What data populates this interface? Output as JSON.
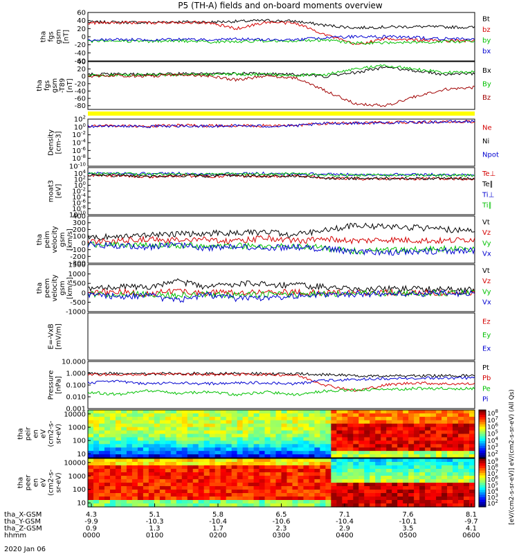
{
  "title": "P5 (TH-A) fields and on-board moments overview",
  "date_label": "2020 Jan 06",
  "chart_data": {
    "type": "line",
    "x_time_ticks": [
      "0000",
      "0100",
      "0200",
      "0300",
      "0400",
      "0500",
      "0600"
    ],
    "ephemeris": [
      {
        "label": "tha_X-GSM",
        "values": [
          "4.3",
          "5.1",
          "5.8",
          "6.5",
          "7.1",
          "7.6",
          "8.1"
        ]
      },
      {
        "label": "tha_Y-GSM",
        "values": [
          "-9.9",
          "-10.3",
          "-10.4",
          "-10.6",
          "-10.4",
          "-10.1",
          "-9.7"
        ]
      },
      {
        "label": "tha_Z-GSM",
        "values": [
          "0.9",
          "1.3",
          "1.7",
          "2.3",
          "2.9",
          "3.5",
          "4.1"
        ]
      },
      {
        "label": "hhmm",
        "values": [
          "0000",
          "0100",
          "0200",
          "0300",
          "0400",
          "0500",
          "0600"
        ]
      }
    ],
    "panels": [
      {
        "id": "fgs_gsm",
        "ylabel": [
          "tha",
          "fgs",
          "gsm",
          "[nT]"
        ],
        "ylim": [
          -60,
          60
        ],
        "yticks": [
          "60",
          "40",
          "20",
          "0",
          "-20",
          "-40",
          "-60"
        ],
        "legend": [
          {
            "name": "Bt",
            "color": "#000000"
          },
          {
            "name": "bz",
            "color": "#d40000"
          },
          {
            "name": "by",
            "color": "#00c000"
          },
          {
            "name": "bx",
            "color": "#0000d0"
          }
        ],
        "series": [
          {
            "name": "Bt",
            "color": "#000000",
            "values": [
              36,
              36,
              35,
              37,
              36,
              38,
              40,
              38,
              28,
              22,
              24,
              25,
              24,
              23
            ]
          },
          {
            "name": "bz",
            "color": "#d40000",
            "values": [
              34,
              35,
              34,
              36,
              35,
              20,
              36,
              33,
              5,
              -20,
              -5,
              -8,
              -10,
              -10
            ]
          },
          {
            "name": "by",
            "color": "#00c000",
            "values": [
              -12,
              -10,
              -12,
              -10,
              -13,
              -12,
              -10,
              -12,
              -8,
              -16,
              -15,
              -14,
              -12,
              -12
            ]
          },
          {
            "name": "bx",
            "color": "#0000d0",
            "values": [
              -8,
              -7,
              -8,
              -7,
              -8,
              -6,
              -7,
              -8,
              -2,
              0,
              0,
              -2,
              -5,
              -6
            ]
          }
        ]
      },
      {
        "id": "fgs_dsl",
        "ylabel": [
          "tha",
          "fgs",
          "gsm",
          "-T89",
          "[nT]"
        ],
        "ylim": [
          -90,
          40
        ],
        "yticks": [
          "40",
          "20",
          "0",
          "-20",
          "-40",
          "-60",
          "-80"
        ],
        "legend": [
          {
            "name": "Bx",
            "color": "#000000"
          },
          {
            "name": "By",
            "color": "#00c000"
          },
          {
            "name": "Bz",
            "color": "#a00000"
          }
        ],
        "series": [
          {
            "name": "Bx",
            "color": "#000000",
            "values": [
              5,
              6,
              5,
              7,
              6,
              8,
              7,
              5,
              0,
              10,
              25,
              15,
              5,
              8
            ]
          },
          {
            "name": "By",
            "color": "#00c000",
            "values": [
              2,
              4,
              3,
              5,
              4,
              6,
              5,
              3,
              5,
              20,
              30,
              20,
              10,
              12
            ]
          },
          {
            "name": "Bz",
            "color": "#a00000",
            "values": [
              0,
              2,
              0,
              4,
              2,
              -10,
              2,
              -5,
              -40,
              -75,
              -80,
              -55,
              -35,
              -30
            ]
          }
        ]
      },
      {
        "id": "density",
        "ylabel": [
          "Density",
          "[cm-3]"
        ],
        "log": true,
        "ylim": [
          -10,
          2
        ],
        "yticks": [
          "10^2",
          "10^0",
          "10^-2",
          "10^-4",
          "10^-6",
          "10^-8",
          "10^-10"
        ],
        "legend": [
          {
            "name": "Ne",
            "color": "#d40000"
          },
          {
            "name": "Ni",
            "color": "#000000"
          },
          {
            "name": "Npot",
            "color": "#0000d0"
          }
        ],
        "series": [
          {
            "name": "Ne",
            "color": "#d40000",
            "values": [
              0.3,
              0.3,
              0.2,
              0.4,
              0.3,
              0.4,
              0.3,
              0.4,
              0.9,
              1.0,
              1.1,
              1.2,
              1.3,
              1.4
            ]
          },
          {
            "name": "Npot",
            "color": "#0000d0",
            "values": [
              0.2,
              0.2,
              0.1,
              0.3,
              0.2,
              0.3,
              0.2,
              0.3,
              0.9,
              1.0,
              1.1,
              1.2,
              1.3,
              1.4
            ]
          }
        ]
      },
      {
        "id": "temperature",
        "ylabel": [
          "moat3",
          "[eV]"
        ],
        "log": true,
        "ylim": [
          -10,
          6
        ],
        "yticks": [
          "10^4",
          "10^2",
          "10^0",
          "10^-2",
          "10^-4",
          "10^-6",
          "10^-8",
          "10^-10"
        ],
        "legend": [
          {
            "name": "Te⊥",
            "color": "#d40000"
          },
          {
            "name": "Te∥",
            "color": "#000000"
          },
          {
            "name": "Ti⊥",
            "color": "#0000d0"
          },
          {
            "name": "Ti∥",
            "color": "#00c000"
          }
        ],
        "series": [
          {
            "name": "Ti⊥",
            "color": "#0000d0",
            "values": [
              4,
              4.1,
              3.9,
              4,
              3.8,
              3.9,
              4,
              3.9,
              3.7,
              3.6,
              3.6,
              3.6,
              3.6,
              3.6
            ]
          },
          {
            "name": "Ti∥",
            "color": "#00c000",
            "values": [
              3.8,
              3.9,
              3.7,
              3.8,
              3.7,
              3.8,
              3.9,
              3.8,
              3.5,
              3.4,
              3.4,
              3.4,
              3.4,
              3.4
            ]
          },
          {
            "name": "Te⊥",
            "color": "#d40000",
            "values": [
              3.4,
              3.2,
              2.8,
              3.2,
              3.0,
              3.2,
              3.0,
              3.1,
              2.4,
              2.2,
              2.2,
              2.2,
              2.2,
              2.2
            ]
          },
          {
            "name": "Te∥",
            "color": "#000000",
            "values": [
              3.5,
              3.3,
              2.9,
              3.3,
              3.1,
              3.3,
              3.1,
              3.2,
              2.5,
              2.3,
              2.3,
              2.3,
              2.3,
              2.3
            ]
          }
        ]
      },
      {
        "id": "peim_velocity",
        "ylabel": [
          "tha",
          "peim",
          "velocity",
          "gsm",
          "[km/s]"
        ],
        "ylim": [
          -300,
          400
        ],
        "yticks": [
          "400",
          "300",
          "200",
          "100",
          "0",
          "-100",
          "-200",
          "-300"
        ],
        "legend": [
          {
            "name": "Vt",
            "color": "#000000"
          },
          {
            "name": "Vz",
            "color": "#d40000"
          },
          {
            "name": "Vy",
            "color": "#00c000"
          },
          {
            "name": "Vx",
            "color": "#0000d0"
          }
        ],
        "series": [
          {
            "name": "Vt",
            "color": "#000000",
            "values": [
              80,
              100,
              120,
              130,
              140,
              150,
              160,
              120,
              200,
              260,
              240,
              230,
              200,
              190
            ]
          },
          {
            "name": "Vz",
            "color": "#d40000",
            "values": [
              20,
              30,
              50,
              40,
              60,
              20,
              80,
              30,
              60,
              30,
              50,
              40,
              30,
              60
            ]
          },
          {
            "name": "Vy",
            "color": "#00c000",
            "values": [
              -30,
              -20,
              -40,
              -30,
              -50,
              -40,
              -60,
              -40,
              -80,
              -120,
              -110,
              -100,
              -90,
              -100
            ]
          },
          {
            "name": "Vx",
            "color": "#0000d0",
            "values": [
              -20,
              -40,
              -60,
              -30,
              -80,
              -50,
              -70,
              -60,
              -90,
              -130,
              -150,
              -130,
              -120,
              -110
            ]
          }
        ]
      },
      {
        "id": "peem_velocity",
        "ylabel": [
          "tha",
          "peem",
          "velocity",
          "gsm",
          "[km/s]"
        ],
        "ylim": [
          -1000,
          1500
        ],
        "yticks": [
          "1500",
          "1000",
          "500",
          "0",
          "-500",
          "-1000"
        ],
        "legend": [
          {
            "name": "Vt",
            "color": "#000000"
          },
          {
            "name": "Vz",
            "color": "#d40000"
          },
          {
            "name": "Vy",
            "color": "#00c000"
          },
          {
            "name": "Vx",
            "color": "#0000d0"
          }
        ],
        "series": [
          {
            "name": "Vt",
            "color": "#000000",
            "values": [
              200,
              350,
              250,
              600,
              300,
              500,
              450,
              400,
              300,
              250,
              200,
              200,
              180,
              180
            ]
          },
          {
            "name": "Vz",
            "color": "#d40000",
            "values": [
              0,
              50,
              -50,
              100,
              0,
              50,
              0,
              30,
              0,
              0,
              0,
              0,
              0,
              0
            ]
          },
          {
            "name": "Vy",
            "color": "#00c000",
            "values": [
              -50,
              -100,
              -80,
              -150,
              -60,
              -120,
              -100,
              -80,
              -50,
              -30,
              -20,
              -20,
              -20,
              -20
            ]
          },
          {
            "name": "Vx",
            "color": "#0000d0",
            "values": [
              -100,
              -200,
              -150,
              -400,
              -100,
              -300,
              -250,
              -150,
              -100,
              -60,
              -50,
              -50,
              -40,
              -40
            ]
          }
        ]
      },
      {
        "id": "efield",
        "ylabel": [
          "E=-VxB",
          "[mV/m]"
        ],
        "ylim": [
          0,
          1
        ],
        "yticks": [],
        "legend": [
          {
            "name": "Ez",
            "color": "#d40000"
          },
          {
            "name": "Ey",
            "color": "#00c000"
          },
          {
            "name": "Ex",
            "color": "#0000d0"
          }
        ],
        "series": []
      },
      {
        "id": "pressure",
        "ylabel": [
          "Pressure",
          "[nPa]"
        ],
        "log": true,
        "ylim": [
          -3,
          1
        ],
        "yticks": [
          "10.000",
          "1.000",
          "0.100",
          "0.010",
          "0.001"
        ],
        "legend": [
          {
            "name": "Pt",
            "color": "#000000"
          },
          {
            "name": "Pb",
            "color": "#d40000"
          },
          {
            "name": "Pe",
            "color": "#00c000"
          },
          {
            "name": "Pi",
            "color": "#0000d0"
          }
        ],
        "series": [
          {
            "name": "Pt",
            "color": "#000000",
            "values": [
              0.0,
              -0.02,
              -0.05,
              0.0,
              -0.02,
              0.0,
              -0.03,
              -0.05,
              -0.1,
              -0.2,
              -0.2,
              -0.2,
              -0.2,
              -0.2
            ]
          },
          {
            "name": "Pb",
            "color": "#d40000",
            "values": [
              -0.1,
              -0.1,
              -0.1,
              -0.05,
              -0.1,
              -0.1,
              -0.1,
              -0.15,
              -1.0,
              -1.5,
              -1.0,
              -0.8,
              -0.9,
              -0.9
            ]
          },
          {
            "name": "Pi",
            "color": "#0000d0",
            "values": [
              -0.8,
              -0.7,
              -0.9,
              -0.8,
              -0.9,
              -0.8,
              -0.8,
              -0.9,
              -0.6,
              -0.5,
              -0.45,
              -0.4,
              -0.4,
              -0.4
            ]
          },
          {
            "name": "Pe",
            "color": "#00c000",
            "values": [
              -1.6,
              -1.8,
              -1.5,
              -1.7,
              -1.6,
              -1.8,
              -1.6,
              -1.8,
              -1.5,
              -1.4,
              -1.4,
              -1.3,
              -1.3,
              -1.3
            ]
          }
        ]
      }
    ],
    "spectrograms": [
      {
        "id": "peir",
        "ylabel": [
          "tha",
          "peir",
          "en",
          "eV",
          "(cm2-s-",
          "sr-eV)"
        ],
        "yticks": [
          "10000",
          "1000",
          "100",
          "10"
        ],
        "ylim_log": [
          0.7,
          4.3
        ]
      },
      {
        "id": "peer",
        "ylabel": [
          "tha",
          "peer",
          "en",
          "eV",
          "(cm2-s-",
          "sr-eV)"
        ],
        "yticks": [
          "10000",
          "1000",
          "100",
          "10"
        ],
        "ylim_log": [
          0.7,
          4.3
        ]
      }
    ],
    "colorbars": [
      {
        "ticks": [
          "10^8",
          "10^7",
          "10^6",
          "10^5",
          "10^4",
          "10^3",
          "10^2"
        ]
      },
      {
        "ticks": [
          "10^9",
          "10^8",
          "10^7",
          "10^6",
          "10^5",
          "10^4",
          "10^3",
          "10^2"
        ]
      }
    ],
    "colorbar_label": "[eV/(cm2-s-sr-eV)] eV/(cm2-s-sr-eV) (All Qs)"
  }
}
